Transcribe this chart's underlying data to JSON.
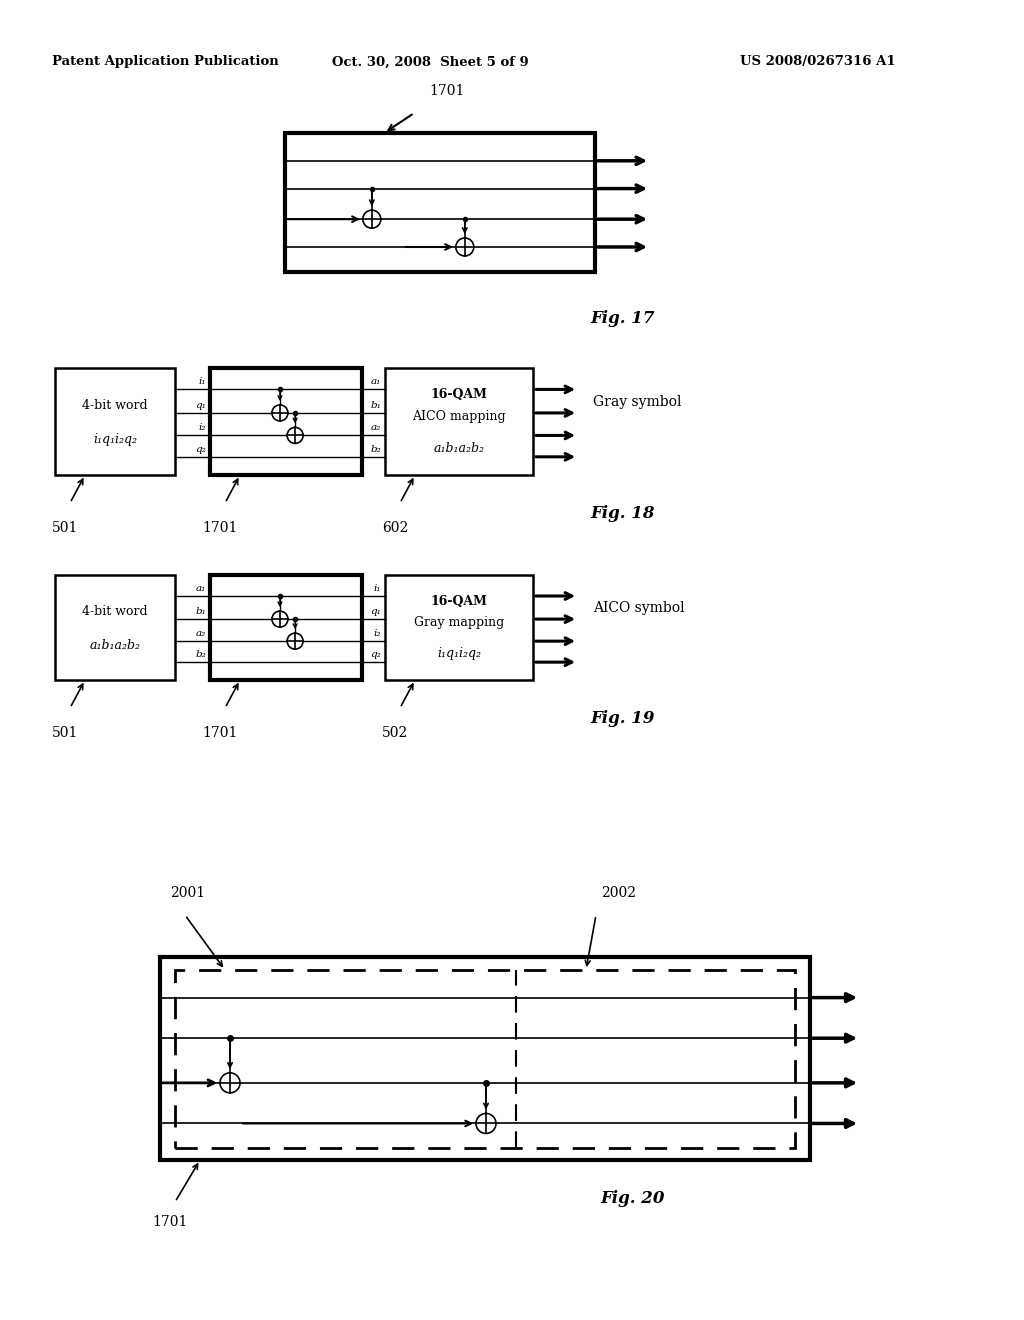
{
  "bg_color": "#ffffff",
  "header_left": "Patent Application Publication",
  "header_center": "Oct. 30, 2008  Sheet 5 of 9",
  "header_right": "US 2008/0267316 A1",
  "fig17_label": "Fig. 17",
  "fig18_label": "Fig. 18",
  "fig19_label": "Fig. 19",
  "fig20_label": "Fig. 20",
  "ref_1701": "1701",
  "ref_501": "501",
  "ref_602": "602",
  "ref_502": "502",
  "ref_2001": "2001",
  "ref_2002": "2002",
  "fig18_left_text1": "4-bit word",
  "fig18_left_text2": "i₁q₁i₂q₂",
  "fig18_right_text1": "16-QAM",
  "fig18_right_text2": "AICO mapping",
  "fig18_right_text3": "a₁b₁a₂b₂",
  "fig18_out_label": "Gray symbol",
  "fig18_labels_in": [
    "i₁",
    "q₁",
    "i₂",
    "q₂"
  ],
  "fig18_labels_out": [
    "a₁",
    "b₁",
    "a₂",
    "b₂"
  ],
  "fig19_left_text1": "4-bit word",
  "fig19_left_text2": "a₁b₁a₂b₂",
  "fig19_right_text1": "16-QAM",
  "fig19_right_text2": "Gray mapping",
  "fig19_right_text3": "i₁q₁i₂q₂",
  "fig19_out_label": "AICO symbol",
  "fig19_labels_in": [
    "a₁",
    "b₁",
    "a₂",
    "b₂"
  ],
  "fig19_labels_out": [
    "i₁",
    "q₁",
    "i₂",
    "q₂"
  ]
}
